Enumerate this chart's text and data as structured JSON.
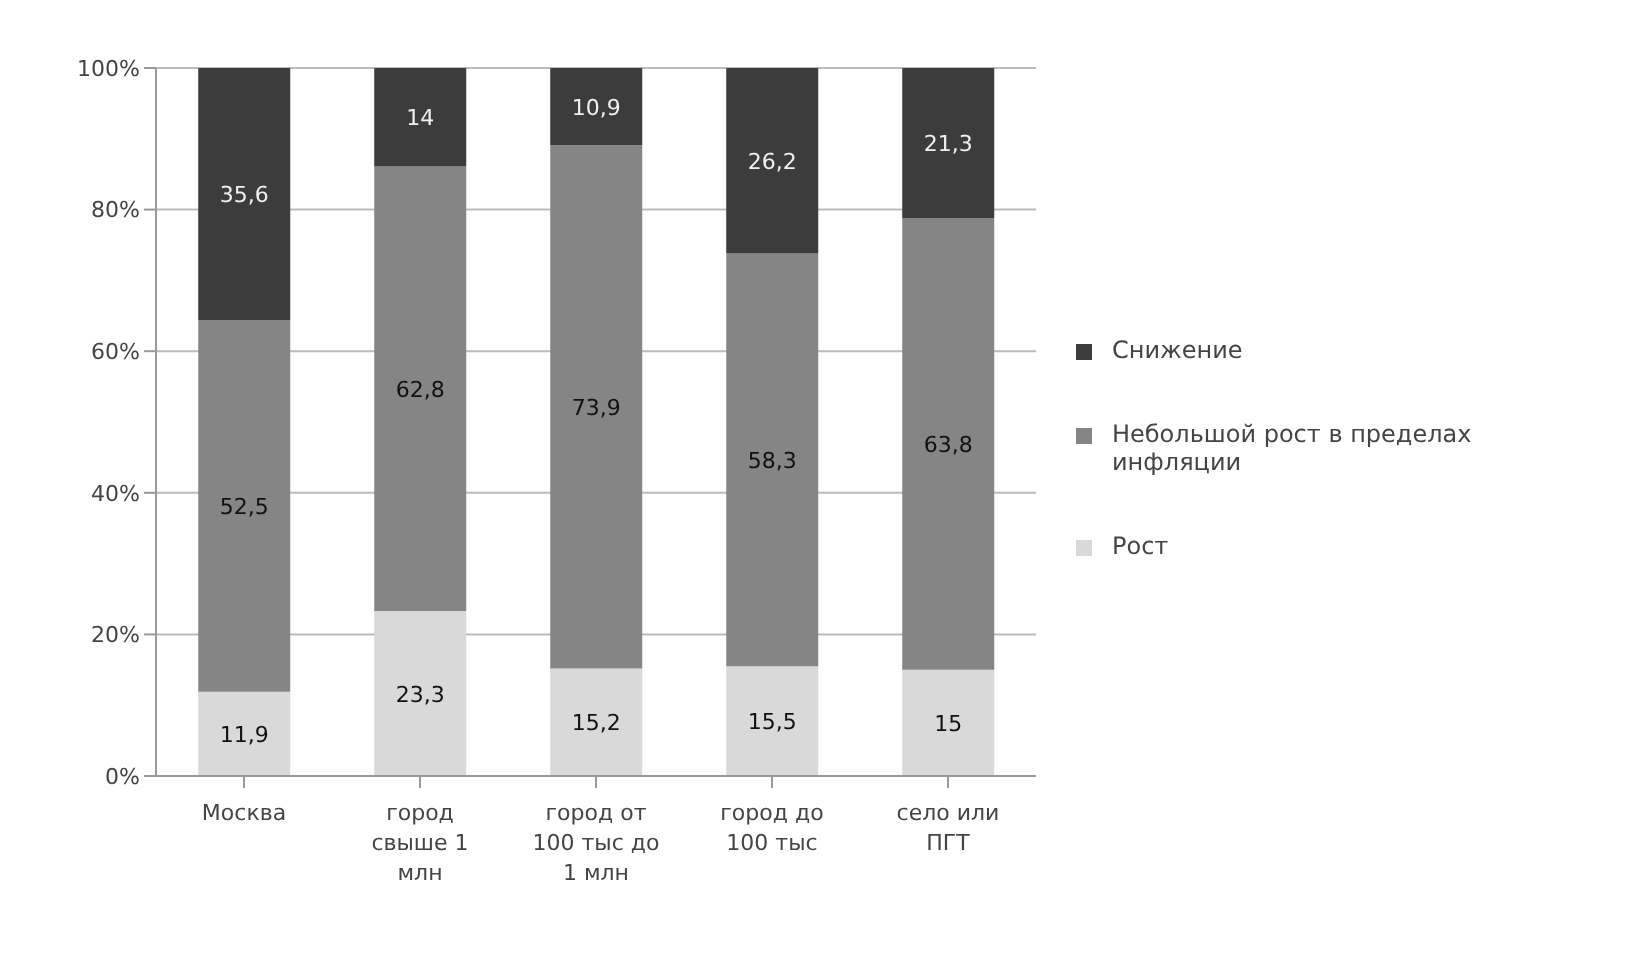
{
  "chart_data": {
    "type": "bar",
    "stacked": true,
    "categories": [
      "Москва",
      "город свыше 1 млн",
      "город от 100 тыс до 1 млн",
      "город до 100 тыс",
      "село или ПГТ"
    ],
    "series": [
      {
        "name": "Рост",
        "color": "#d9d9d9",
        "values": [
          11.9,
          23.3,
          15.2,
          15.5,
          15
        ],
        "value_labels": [
          "11,9",
          "23,3",
          "15,2",
          "15,5",
          "15"
        ]
      },
      {
        "name": "Небольшой рост в пределах инфляции",
        "color": "#858585",
        "values": [
          52.5,
          62.8,
          73.9,
          58.3,
          63.8
        ],
        "value_labels": [
          "52,5",
          "62,8",
          "73,9",
          "58,3",
          "63,8"
        ]
      },
      {
        "name": "Снижение",
        "color": "#3c3c3c",
        "values": [
          35.6,
          14,
          10.9,
          26.2,
          21.3
        ],
        "value_labels": [
          "35,6",
          "14",
          "10,9",
          "26,2",
          "21,3"
        ]
      }
    ],
    "ylim": [
      0,
      100
    ],
    "yticks": [
      {
        "value": 0,
        "label": "0%"
      },
      {
        "value": 20,
        "label": "20%"
      },
      {
        "value": 40,
        "label": "40%"
      },
      {
        "value": 60,
        "label": "60%"
      },
      {
        "value": 80,
        "label": "80%"
      },
      {
        "value": 100,
        "label": "100%"
      }
    ],
    "grid": "y",
    "legend": "right"
  }
}
